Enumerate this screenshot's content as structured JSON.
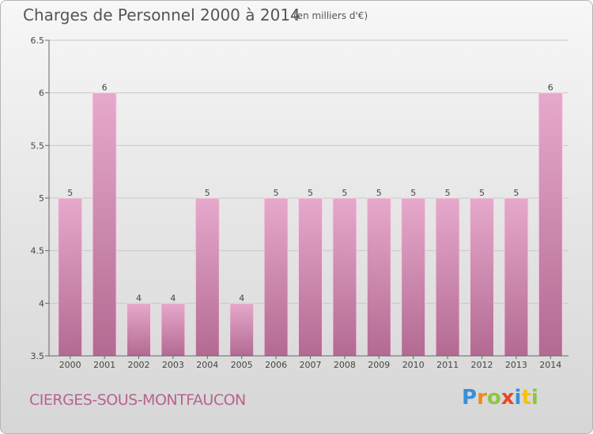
{
  "header": {
    "title": "Charges de Personnel 2000 à 2014",
    "unit": "(en milliers d'€)"
  },
  "footer": {
    "commune": "CIERGES-SOUS-MONTFAUCON",
    "logo_text": "Proxiti",
    "logo_colors": [
      "#3a8fd6",
      "#f08a1c",
      "#8cc63f",
      "#e8462a",
      "#3a8fd6",
      "#f4c20d",
      "#8cc63f"
    ]
  },
  "colors": {
    "bar_light": "#e6a9cb",
    "bar_dark": "#b36a92",
    "grid": "#c8c8c8"
  },
  "chart_data": {
    "type": "bar",
    "title": "Charges de Personnel 2000 à 2014",
    "xlabel": "",
    "ylabel": "",
    "categories": [
      "2000",
      "2001",
      "2002",
      "2003",
      "2004",
      "2005",
      "2006",
      "2007",
      "2008",
      "2009",
      "2010",
      "2011",
      "2012",
      "2013",
      "2014"
    ],
    "values": [
      5,
      6,
      4,
      4,
      5,
      4,
      5,
      5,
      5,
      5,
      5,
      5,
      5,
      5,
      6
    ],
    "ylim": [
      3.5,
      6.5
    ],
    "yticks": [
      "3.5",
      "4",
      "4.5",
      "5",
      "5.5",
      "6",
      "6.5"
    ],
    "grid": true
  }
}
